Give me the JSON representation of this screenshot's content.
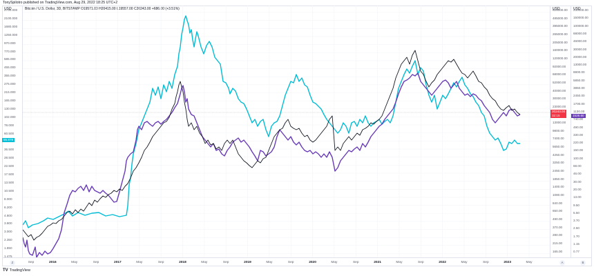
{
  "header": {
    "publisher_line": "TonySpilotro published on TradingView.com, Aug 29, 2022 18:25 UTC+2",
    "legend": "Bitcoin / U.S. Dollar, 3D, BITSTAMP  O19571.00  H20415.00  L19557.00  C20243.00  +686.00 (+3.51%)"
  },
  "axes": {
    "unit": "USD",
    "left_ticks": [
      "2700.000",
      "2100.000",
      "1680.000",
      "1250.000",
      "970.000",
      "770.000",
      "585.000",
      "455.000",
      "355.000",
      "275.000",
      "215.000",
      "165.000",
      "130.000",
      "102.000",
      "78.000",
      "60.500",
      "46.500",
      "36.500",
      "28.500",
      "22.500",
      "17.500",
      "13.500",
      "10.500",
      "8.000",
      "6.200",
      "4.800",
      "3.800",
      "3.000",
      "2.350",
      "1.850",
      "1.475"
    ],
    "left_highlight": "55.878",
    "a_ticks": [
      "625000.00",
      "485000.00",
      "395000.00",
      "265000.00",
      "205000.00",
      "160000.00",
      "120000.00",
      "92000.00",
      "68000.00",
      "52000.00",
      "40000.00",
      "30000.00",
      "23000.00",
      "18000.00",
      "13000.00",
      "9800.00",
      "7400.00",
      "5650.00",
      "4250.00",
      "3250.00",
      "2450.00",
      "1850.00",
      "1400.00",
      "1080.00",
      "840.00",
      "650.00",
      "490.00",
      "370.00",
      "280.00",
      "215.00",
      "165.00"
    ],
    "a_price_tag": "20243.00",
    "a_price_sub": "32:15",
    "b_ticks": [
      "230000.00",
      "150000.00",
      "100000.00",
      "68000.00",
      "46000.00",
      "30000.00",
      "20000.00",
      "13000.00",
      "8800.00",
      "5850.00",
      "3850.00",
      "2450.00",
      "1700.00",
      "1130.00",
      "740.00",
      "490.00",
      "330.00",
      "220.00",
      "150.00",
      "100.00",
      "68.00",
      "46.00",
      "30.00",
      "20.00",
      "13.00",
      "9.50",
      "5.50",
      "3.70",
      "2.50",
      "1.70",
      "1.15",
      "0.77"
    ],
    "b_price_tag": "1528.60",
    "x_labels": [
      {
        "text": "Sep",
        "year": false
      },
      {
        "text": "2016",
        "year": true
      },
      {
        "text": "May",
        "year": false
      },
      {
        "text": "Sep",
        "year": false
      },
      {
        "text": "2017",
        "year": true
      },
      {
        "text": "May",
        "year": false
      },
      {
        "text": "Sep",
        "year": false
      },
      {
        "text": "2018",
        "year": true
      },
      {
        "text": "May",
        "year": false
      },
      {
        "text": "Sep",
        "year": false
      },
      {
        "text": "2019",
        "year": true
      },
      {
        "text": "May",
        "year": false
      },
      {
        "text": "Sep",
        "year": false
      },
      {
        "text": "2020",
        "year": true
      },
      {
        "text": "May",
        "year": false
      },
      {
        "text": "Sep",
        "year": false
      },
      {
        "text": "2021",
        "year": true
      },
      {
        "text": "May",
        "year": false
      },
      {
        "text": "Sep",
        "year": false
      },
      {
        "text": "2022",
        "year": true
      },
      {
        "text": "May",
        "year": false
      },
      {
        "text": "Sep",
        "year": false
      },
      {
        "text": "2023",
        "year": true
      },
      {
        "text": "May",
        "year": false
      }
    ],
    "scale_buttons": {
      "left": "Z",
      "a": "A",
      "b": "B"
    }
  },
  "colors": {
    "btc": "#131722",
    "purple": "#673ab7",
    "cyan": "#00bcd4",
    "price_line": "#f23645",
    "grid": "#f3f4f7"
  },
  "brand": {
    "logo": "TV",
    "name": "TradingView"
  },
  "chart_data": {
    "type": "line",
    "title": "Bitcoin / U.S. Dollar, 3D, BITSTAMP",
    "ohlc": {
      "open": 19571.0,
      "high": 20415.0,
      "low": 19557.0,
      "close": 20243.0,
      "change": 686.0,
      "change_pct": 3.51
    },
    "xlabel": "",
    "ylabel": "USD",
    "x": [
      "2015-08",
      "2015-09",
      "2016-01",
      "2016-05",
      "2016-09",
      "2017-01",
      "2017-05",
      "2017-09",
      "2017-12",
      "2018-05",
      "2018-09",
      "2018-12",
      "2019-05",
      "2019-07",
      "2019-09",
      "2020-01",
      "2020-03",
      "2020-05",
      "2020-09",
      "2021-01",
      "2021-04",
      "2021-07",
      "2021-11",
      "2022-01",
      "2022-05",
      "2022-07",
      "2022-08"
    ],
    "series": [
      {
        "name": "BTCUSD (Scale A)",
        "color": "#131722",
        "values": [
          230,
          240,
          430,
          450,
          600,
          1000,
          2000,
          4300,
          17000,
          8500,
          6500,
          3300,
          8000,
          11500,
          8500,
          9000,
          5000,
          9500,
          10500,
          30000,
          60000,
          35000,
          65000,
          42000,
          30000,
          21000,
          20243
        ]
      },
      {
        "name": "Overlay (Scale B, purple)",
        "color": "#673ab7",
        "values": [
          2.0,
          1.3,
          8.0,
          9.0,
          6.5,
          5.5,
          30,
          150,
          1100,
          500,
          300,
          120,
          270,
          400,
          180,
          200,
          110,
          260,
          330,
          1800,
          4500,
          2300,
          5600,
          3500,
          2400,
          1300,
          1528.6
        ]
      },
      {
        "name": "Overlay (Left scale, cyan)",
        "color": "#00bcd4",
        "values": [
          3.0,
          3.2,
          3.5,
          3.6,
          3.4,
          3.6,
          80,
          500,
          2500,
          900,
          620,
          150,
          700,
          1200,
          420,
          700,
          220,
          500,
          390,
          1100,
          2500,
          1100,
          2100,
          500,
          190,
          55,
          55.878
        ]
      }
    ],
    "axes_ranges": {
      "left": [
        1.475,
        2700
      ],
      "a": [
        165,
        625000
      ],
      "b": [
        0.77,
        230000
      ]
    },
    "scale": "log",
    "grid": true,
    "legend_position": "top-left",
    "annotations": [
      "Current price line at 20243.00 (red)",
      "Purple last value 1528.60",
      "Cyan last value 55.878"
    ]
  }
}
